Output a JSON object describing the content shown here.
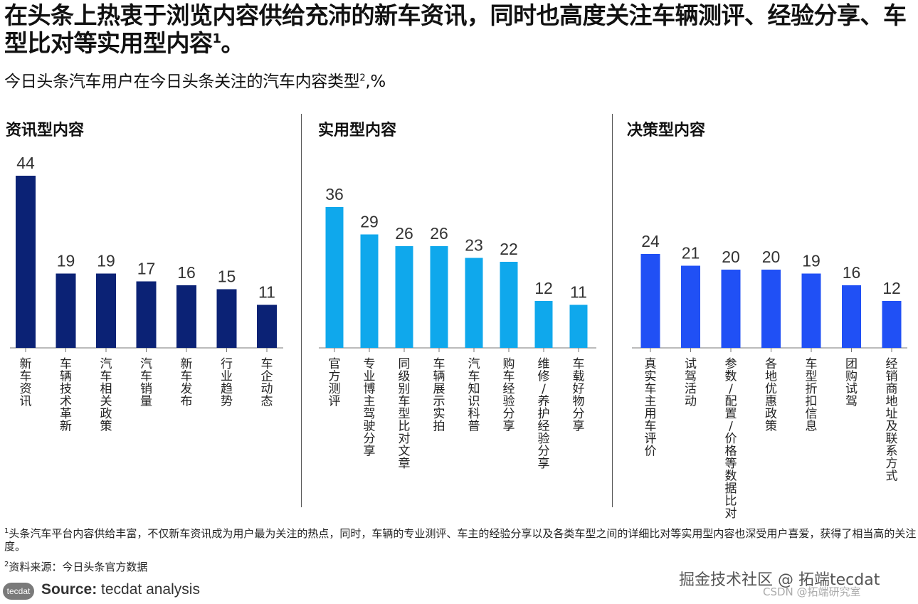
{
  "header": {
    "title": "在头条上热衷于浏览内容供给充沛的新车资讯，同时也高度关注车辆测评、经验分享、车型比对等实用型内容",
    "title_sup": "1",
    "title_end": "。",
    "subtitle": "今日头条汽车用户在今日头条关注的汽车内容类型",
    "subtitle_sup": "2",
    "subtitle_unit": ",%"
  },
  "chart_data": [
    {
      "type": "bar",
      "title": "资讯型内容",
      "color": "#0b2275",
      "categories": [
        "新车资讯",
        "车辆技术革新",
        "汽车相关政策",
        "汽车销量",
        "新车发布",
        "行业趋势",
        "车企动态"
      ],
      "values": [
        44,
        19,
        19,
        17,
        16,
        15,
        11
      ]
    },
    {
      "type": "bar",
      "title": "实用型内容",
      "color": "#0fa8ec",
      "categories": [
        "官方测评",
        "专业博主驾驶分享",
        "同级别车型比对文章",
        "车辆展示实拍",
        "汽车知识科普",
        "购车经验分享",
        "维修/养护经验分享",
        "车载好物分享"
      ],
      "values": [
        36,
        29,
        26,
        26,
        23,
        22,
        12,
        11
      ]
    },
    {
      "type": "bar",
      "title": "决策型内容",
      "color": "#2050f5",
      "categories": [
        "真实车主用车评价",
        "试驾活动",
        "参数/配置/价格等数据比对",
        "各地优惠政策",
        "车型折扣信息",
        "团购试驾",
        "经销商地址及联系方式"
      ],
      "values": [
        24,
        21,
        20,
        20,
        19,
        16,
        12
      ]
    }
  ],
  "footnotes": {
    "note1_sup": "1",
    "note1": "头条汽车平台内容供给丰富，不仅新车资讯成为用户最为关注的热点，同时，车辆的专业测评、车主的经验分享以及各类车型之间的详细比对等实用型内容也深受用户喜爱，获得了相当高的关注度。",
    "note2_sup": "2",
    "note2": "资料来源：今日头条官方数据"
  },
  "source": {
    "logo_text": "tecdat",
    "label": "Source:",
    "text": "tecdat analysis"
  },
  "watermark": {
    "text": "掘金技术社区 @ 拓端tecdat",
    "text2": "CSDN @拓端研究室"
  }
}
